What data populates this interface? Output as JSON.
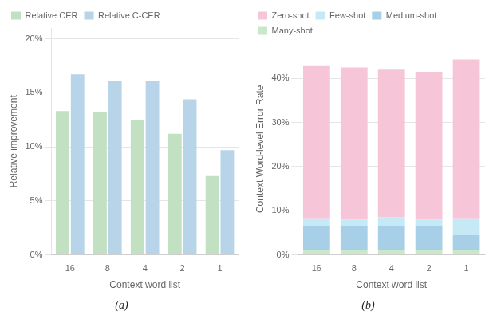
{
  "chart_data": [
    {
      "type": "bar",
      "categories": [
        "16",
        "8",
        "4",
        "2",
        "1"
      ],
      "series": [
        {
          "name": "Relative CER",
          "color": "#c2e0c2",
          "values": [
            13.3,
            13.2,
            12.5,
            11.2,
            7.3
          ]
        },
        {
          "name": "Relative C-CER",
          "color": "#b8d4e8",
          "values": [
            16.7,
            16.1,
            16.1,
            14.4,
            9.7
          ]
        }
      ],
      "xlabel": "Context word list",
      "ylabel": "Relative improvement",
      "ylim": [
        0,
        21
      ],
      "yticks": [
        {
          "value": 0,
          "label": "0%"
        },
        {
          "value": 5,
          "label": "5%"
        },
        {
          "value": 10,
          "label": "10%"
        },
        {
          "value": 15,
          "label": "15%"
        },
        {
          "value": 20,
          "label": "20%"
        }
      ],
      "grid": true,
      "legend": "upper left",
      "caption": "(a)"
    },
    {
      "type": "bar",
      "stacked": true,
      "categories": [
        "16",
        "8",
        "4",
        "2",
        "1"
      ],
      "series": [
        {
          "name": "Many-shot",
          "color": "#c8e8c8",
          "values": [
            1.0,
            1.0,
            1.0,
            1.0,
            1.0
          ]
        },
        {
          "name": "Medium-shot",
          "color": "#a8cfe8",
          "values": [
            5.5,
            5.5,
            5.5,
            5.5,
            3.5
          ]
        },
        {
          "name": "Few-shot",
          "color": "#c5eaf5",
          "values": [
            1.8,
            1.5,
            2.0,
            1.5,
            3.8
          ]
        },
        {
          "name": "Zero-shot",
          "color": "#f7c5d8",
          "values": [
            34.5,
            34.5,
            33.5,
            33.5,
            36.0
          ]
        }
      ],
      "xlabel": "Context word list",
      "ylabel": "Context Word-level Error Rate",
      "ylim": [
        0,
        48
      ],
      "yticks": [
        {
          "value": 0,
          "label": "0%"
        },
        {
          "value": 10,
          "label": "10%"
        },
        {
          "value": 20,
          "label": "20%"
        },
        {
          "value": 30,
          "label": "30%"
        },
        {
          "value": 40,
          "label": "40%"
        }
      ],
      "grid": true,
      "legend": "upper left",
      "caption": "(b)"
    }
  ]
}
